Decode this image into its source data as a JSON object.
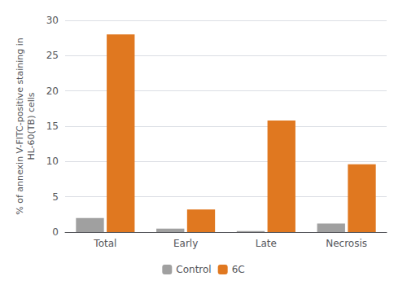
{
  "chart_data": {
    "type": "bar",
    "categories": [
      "Total",
      "Early",
      "Late",
      "Necrosis"
    ],
    "series": [
      {
        "name": "Control",
        "color": "#a0a0a0",
        "values": [
          2.0,
          0.5,
          0.15,
          1.2
        ]
      },
      {
        "name": "6C",
        "color": "#E07820",
        "values": [
          28.0,
          3.2,
          15.8,
          9.6
        ]
      }
    ],
    "ylabel": "% of annexin V-FITC-positive staining in\nHL-60(TB) cells",
    "ylim": [
      0,
      30
    ],
    "yticks": [
      0,
      5,
      10,
      15,
      20,
      25,
      30
    ],
    "grid": true,
    "legend": "bottom"
  }
}
